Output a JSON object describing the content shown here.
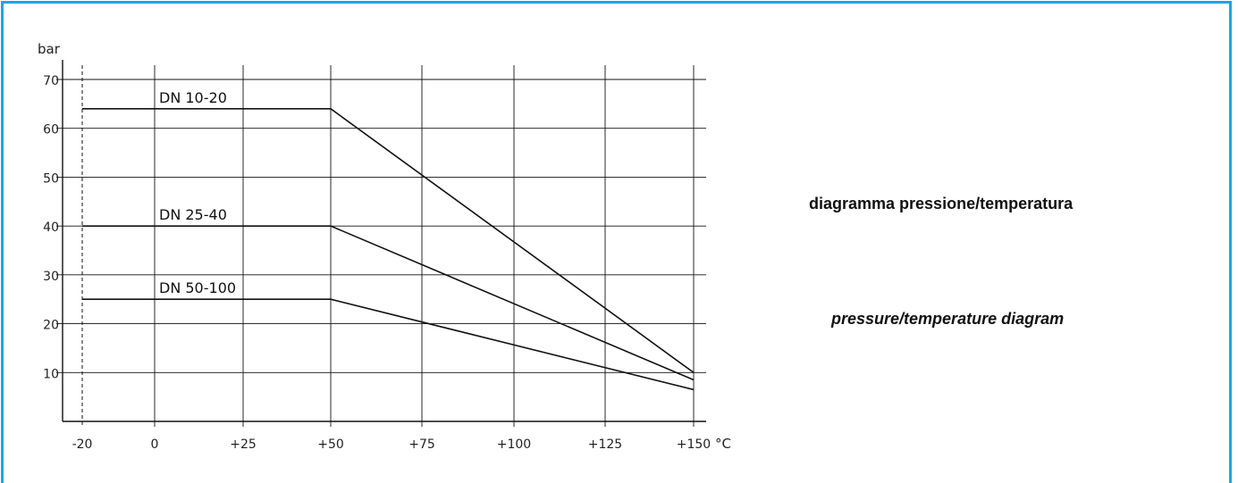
{
  "captions": {
    "italian": "diagramma pressione/temperatura",
    "english": "pressure/temperature diagram"
  },
  "colors": {
    "frame": "#1aa7dc",
    "grid": "#111111",
    "line": "#111111"
  },
  "chart_data": {
    "type": "line",
    "ylabel": "bar",
    "xlabel": "°C",
    "xlim": [
      -20,
      150
    ],
    "ylim": [
      0,
      70
    ],
    "x_tick_labels": [
      "-20",
      "0",
      "+25",
      "+50",
      "+75",
      "+100",
      "+125",
      "+150"
    ],
    "x_ticks": [
      -20,
      0,
      25,
      50,
      75,
      100,
      125,
      150
    ],
    "y_tick_labels": [
      "10",
      "20",
      "30",
      "40",
      "50",
      "60",
      "70"
    ],
    "y_ticks": [
      10,
      20,
      30,
      40,
      50,
      60,
      70
    ],
    "grid": true,
    "series": [
      {
        "name": "DN 10-20",
        "x": [
          -20,
          50,
          150
        ],
        "y": [
          64,
          64,
          10
        ]
      },
      {
        "name": "DN 25-40",
        "x": [
          -20,
          50,
          150
        ],
        "y": [
          40,
          40,
          8.5
        ]
      },
      {
        "name": "DN 50-100",
        "x": [
          -20,
          50,
          150
        ],
        "y": [
          25,
          25,
          6.5
        ]
      }
    ]
  }
}
